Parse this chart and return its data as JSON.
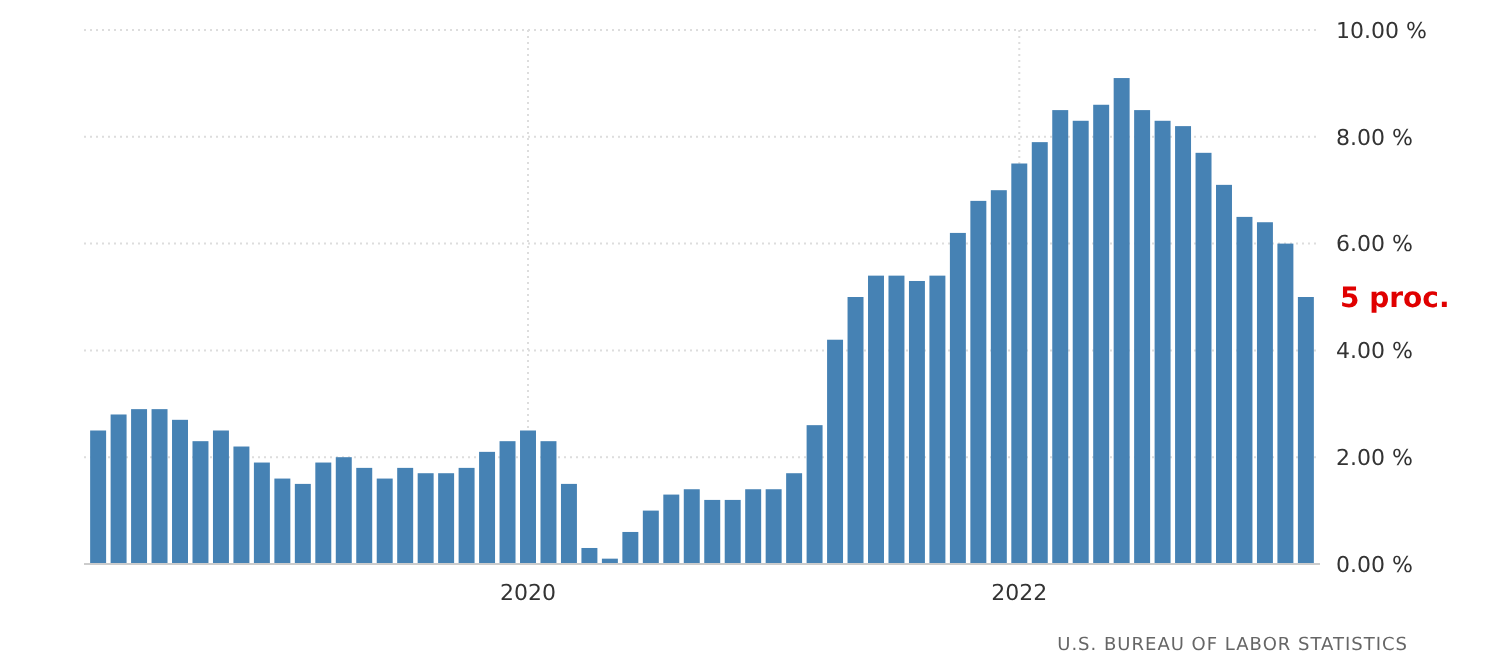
{
  "chart_data": {
    "type": "bar",
    "categories": [
      null,
      null,
      null,
      null,
      null,
      null,
      null,
      null,
      null,
      null,
      null,
      null,
      null,
      null,
      null,
      null,
      null,
      null,
      null,
      null,
      null,
      "2020",
      null,
      null,
      null,
      null,
      null,
      null,
      null,
      null,
      null,
      null,
      null,
      null,
      null,
      null,
      null,
      null,
      null,
      null,
      null,
      null,
      null,
      null,
      null,
      "2022",
      null,
      null,
      null,
      null,
      null,
      null,
      null,
      null,
      null,
      null,
      null,
      null,
      null,
      null
    ],
    "values": [
      2.5,
      2.8,
      2.9,
      2.9,
      2.7,
      2.3,
      2.5,
      2.2,
      1.9,
      1.6,
      1.5,
      1.9,
      2.0,
      1.8,
      1.6,
      1.8,
      1.7,
      1.7,
      1.8,
      2.1,
      2.3,
      2.5,
      2.3,
      1.5,
      0.3,
      0.1,
      0.6,
      1.0,
      1.3,
      1.4,
      1.2,
      1.2,
      1.4,
      1.4,
      1.7,
      2.6,
      4.2,
      5.0,
      5.4,
      5.4,
      5.3,
      5.4,
      6.2,
      6.8,
      7.0,
      7.5,
      7.9,
      8.5,
      8.3,
      8.6,
      9.1,
      8.5,
      8.3,
      8.2,
      7.7,
      7.1,
      6.5,
      6.4,
      6.0,
      5.0
    ],
    "color": "#4682b4",
    "ylim": [
      0,
      10
    ],
    "yticks": [
      {
        "value": 0,
        "label": "0.00 %"
      },
      {
        "value": 2,
        "label": "2.00 %"
      },
      {
        "value": 4,
        "label": "4.00 %"
      },
      {
        "value": 6,
        "label": "6.00 %"
      },
      {
        "value": 8,
        "label": "8.00 %"
      },
      {
        "value": 10,
        "label": "10.00 %"
      }
    ],
    "grid": true,
    "annotations": [
      "5 proc.",
      "U.S. BUREAU OF LABOR STATISTICS"
    ]
  }
}
